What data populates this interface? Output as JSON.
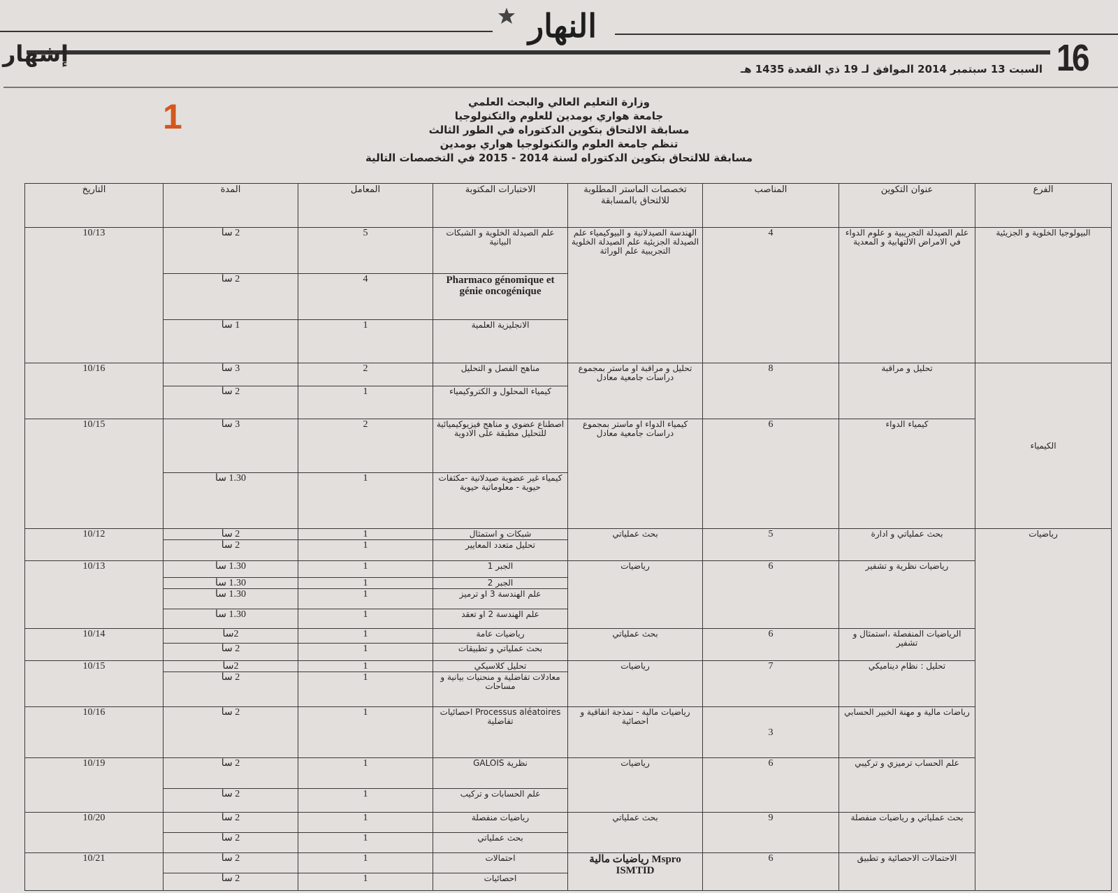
{
  "masthead": {
    "logo_text": "النهار",
    "page_number": "16",
    "section": "إشهار",
    "date_line": "السبت 13 سبتمبر 2014 الموافق لـ 19 ذي القعدة 1435 هـ"
  },
  "ad_number": "1",
  "title_lines": [
    "وزارة التعليم العالي والبحث العلمي",
    "جامعة هواري بومدين للعلوم والتكنولوجيا",
    "مسابقة الالتحاق بتكوين الدكتوراه في الطور الثالث",
    "تنظم جامعة العلوم والتكنولوجيا هواري بومدين",
    "مسابقة للالتحاق بتكوين الدكتوراه لسنة 2014 - 2015 في التخصصات التالية"
  ],
  "table": {
    "headers": [
      "الفرع",
      "عنوان التكوين",
      "المناصب",
      "تخصصات الماستر المطلوبة للالتحاق بالمسابقة",
      "الاختبارات المكتوبة",
      "المعامل",
      "المدة",
      "التاريخ"
    ],
    "branches": [
      {
        "name": "البيولوجيا الخلوية و الجزيئية",
        "programs": [
          {
            "title": "علم الصيدلة التجريبية و علوم الدواء في الامراض الالتهابية و المعدية",
            "positions": "4",
            "masters": "الهندسة الصيدلانية و البيوكيمياء علم الصيدلة الجزيئية علم الصيدلة الخلوية التجريبية علم الوراثة",
            "date": "10/13",
            "exams": [
              {
                "name": "علم الصيدلة الخلوية و الشبكات البيانية",
                "coef": "5",
                "duration": "2 سا"
              },
              {
                "name": "Pharmaco génomique et génie oncogénique",
                "coef": "4",
                "duration": "2 سا",
                "latin": true
              },
              {
                "name": "الانجليزية العلمية",
                "coef": "1",
                "duration": "1 سا"
              }
            ]
          }
        ]
      },
      {
        "name": "الكيمياء",
        "programs": [
          {
            "title": "تحليل و مراقبة",
            "positions": "8",
            "masters": "تحليل و مراقبة او ماستر بمجموع دراسات جامعية معادل",
            "date": "10/16",
            "exams": [
              {
                "name": "مناهج الفصل و التحليل",
                "coef": "2",
                "duration": "3 سا"
              },
              {
                "name": "كيمياء المحلول و الكتروكيمياء",
                "coef": "1",
                "duration": "2 سا"
              }
            ]
          },
          {
            "title": "كيمياء الدواء",
            "positions": "6",
            "masters": "كيمياء الدواء او ماستر بمجموع دراسات جامعية معادل",
            "date": "10/15",
            "exams": [
              {
                "name": "اصطناع عضوي و مناهج فيزيوكيميائية للتحليل مطبقة على الادوية",
                "coef": "2",
                "duration": "3 سا"
              },
              {
                "name": "كيمياء غير عضوية صيدلانية -مكثفات حيوية - معلوماتية حيوية",
                "coef": "1",
                "duration": "1.30 سا"
              }
            ]
          }
        ]
      },
      {
        "name": "رياضيات",
        "programs": [
          {
            "title": "بحث عملياتي و ادارة",
            "positions": "5",
            "masters": "بحث عملياتي",
            "date": "10/12",
            "exams": [
              {
                "name": "شبكات و استمثال",
                "coef": "1",
                "duration": "2 سا"
              },
              {
                "name": "تحليل متعدد المعايير",
                "coef": "1",
                "duration": "2 سا"
              }
            ]
          },
          {
            "title": "رياضيات نظرية و تشفير",
            "positions": "6",
            "masters": "رياضيات",
            "date": "10/13",
            "exams": [
              {
                "name": "الجبر 1",
                "coef": "1",
                "duration": "1.30 سا"
              },
              {
                "name": "الجبر 2",
                "coef": "1",
                "duration": "1.30 سا"
              },
              {
                "name": "علم الهندسة 3 او ترميز",
                "coef": "1",
                "duration": "1.30 سا"
              },
              {
                "name": "علم الهندسة 2 او تعقد",
                "coef": "1",
                "duration": "1.30 سا"
              }
            ]
          },
          {
            "title": "الرياضيات المنفصلة ،استمثال و تشفير",
            "positions": "6",
            "masters": "بحث عملياتي",
            "date": "10/14",
            "exams": [
              {
                "name": "رياضيات عامة",
                "coef": "1",
                "duration": "2سا"
              },
              {
                "name": "بحث عملياتي و تطبيقات",
                "coef": "1",
                "duration": "2 سا"
              }
            ]
          },
          {
            "title": "تحليل : نظام ديناميكي",
            "positions": "7",
            "masters": "رياضيات",
            "date": "10/15",
            "exams": [
              {
                "name": "تحليل كلاسيكي",
                "coef": "1",
                "duration": "2سا"
              },
              {
                "name": "معادلات تفاضلية و منحنيات بيانية و مساحات",
                "coef": "1",
                "duration": "2 سا"
              }
            ]
          },
          {
            "title": "رياضات مالية و مهنة الخبير الحسابي",
            "positions": "3",
            "masters": "رياضيات مالية - نمذجة اتفاقية و احصائية",
            "date": "10/16",
            "middle": true,
            "exams": [
              {
                "name": "Processus aléatoires احصائيات تفاضلية",
                "coef": "1",
                "duration": "2 سا"
              }
            ]
          },
          {
            "title": "علم الحساب ترميزي و تركيبي",
            "positions": "6",
            "masters": "رياضيات",
            "date": "10/19",
            "exams": [
              {
                "name": "نظرية GALOIS",
                "coef": "1",
                "duration": "2 سا"
              },
              {
                "name": "علم الحسابات و تركيب",
                "coef": "1",
                "duration": "2 سا"
              }
            ]
          },
          {
            "title": "بحث عملياتي و رياضيات منفصلة",
            "positions": "9",
            "masters": "بحث عملياتي",
            "date": "10/20",
            "exams": [
              {
                "name": "رياضيات منفصلة",
                "coef": "1",
                "duration": "2 سا"
              },
              {
                "name": "بحث عملياتي",
                "coef": "1",
                "duration": "2 سا"
              }
            ]
          },
          {
            "title": "الاحتمالات الاحصائية و تطبيق",
            "positions": "6",
            "masters": "Mspro رياضيات مالية ISMTID",
            "date": "10/21",
            "exams": [
              {
                "name": "احتمالات",
                "coef": "1",
                "duration": "2 سا"
              },
              {
                "name": "احصائيات",
                "coef": "1",
                "duration": "2 سا"
              }
            ]
          }
        ]
      }
    ]
  }
}
